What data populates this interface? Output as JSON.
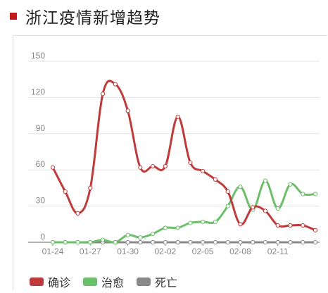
{
  "header": {
    "title": "浙江疫情新增趋势"
  },
  "colors": {
    "header_mark": "#c41a1a",
    "grid": "#e3e3e3",
    "axis": "#9a9a9a",
    "tick_text": "#888888"
  },
  "chart_data": {
    "type": "line",
    "title": "浙江疫情新增趋势",
    "x": [
      "01-24",
      "01-25",
      "01-26",
      "01-27",
      "01-28",
      "01-29",
      "01-30",
      "01-31",
      "02-01",
      "02-02",
      "02-03",
      "02-04",
      "02-05",
      "02-06",
      "02-07",
      "02-08",
      "02-09",
      "02-10",
      "02-11",
      "02-12",
      "02-13",
      "02-14"
    ],
    "x_tick_labels": [
      "01-24",
      "01-27",
      "01-30",
      "02-02",
      "02-05",
      "02-08",
      "02-11"
    ],
    "y_ticks": [
      0,
      30,
      60,
      90,
      120,
      150
    ],
    "ylim": [
      0,
      150
    ],
    "grid": true,
    "legend_position": "bottom",
    "series": [
      {
        "name": "确诊",
        "color": "#bf3b3b",
        "values": [
          62,
          42,
          24,
          45,
          123,
          131,
          109,
          62,
          63,
          63,
          104,
          66,
          59,
          52,
          42,
          15,
          29,
          26,
          14,
          14,
          14,
          10
        ]
      },
      {
        "name": "治愈",
        "color": "#6abf69",
        "values": [
          0,
          0,
          0,
          0,
          2,
          0,
          6,
          4,
          7,
          12,
          12,
          16,
          17,
          17,
          30,
          46,
          27,
          51,
          28,
          48,
          40,
          40
        ]
      },
      {
        "name": "死亡",
        "color": "#8a8a8a",
        "values": [
          0,
          0,
          0,
          0,
          0,
          0,
          0,
          0,
          0,
          0,
          0,
          0,
          0,
          0,
          0,
          0,
          0,
          0,
          0,
          0,
          0,
          0
        ]
      }
    ]
  }
}
